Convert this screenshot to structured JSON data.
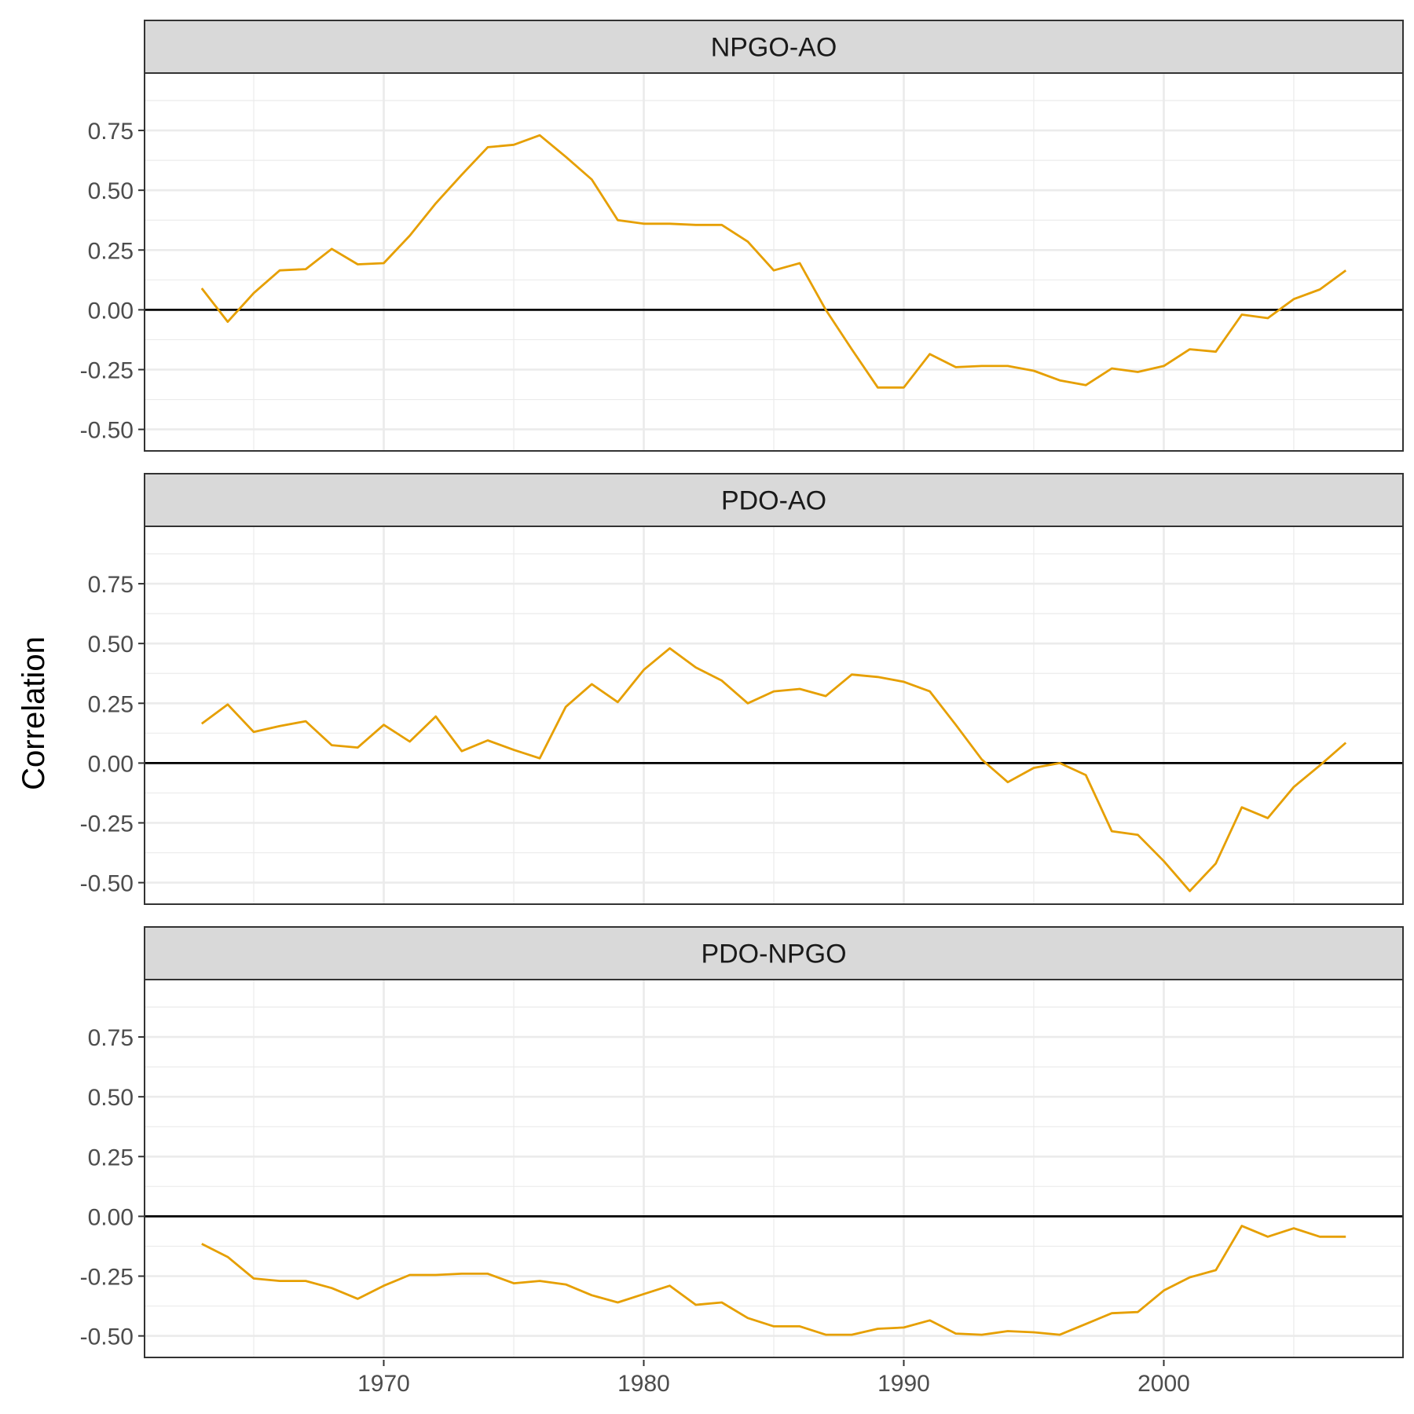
{
  "chart_data": {
    "type": "line",
    "ylabel": "Correlation",
    "xlabel": "",
    "series_color": "#E69F00",
    "zero_line_color": "#000000",
    "strip_fill": "#D9D9D9",
    "grid_color": "#EBEBEB",
    "ylim": [
      -0.59,
      0.99
    ],
    "xlim": [
      1960.8,
      2009.2
    ],
    "x_ticks": [
      1970,
      1980,
      1990,
      2000
    ],
    "x_tick_labels": [
      "1970",
      "1980",
      "1990",
      "2000"
    ],
    "y_ticks": [
      -0.5,
      -0.25,
      0,
      0.25,
      0.5,
      0.75
    ],
    "y_tick_labels": [
      "-0.50",
      "-0.25",
      "0.00",
      "0.25",
      "0.50",
      "0.75"
    ],
    "x": [
      1963,
      1964,
      1965,
      1966,
      1967,
      1968,
      1969,
      1970,
      1971,
      1972,
      1973,
      1974,
      1975,
      1976,
      1977,
      1978,
      1979,
      1980,
      1981,
      1982,
      1983,
      1984,
      1985,
      1986,
      1987,
      1988,
      1989,
      1990,
      1991,
      1992,
      1993,
      1994,
      1995,
      1996,
      1997,
      1998,
      1999,
      2000,
      2001,
      2002,
      2003,
      2004,
      2005,
      2006,
      2007
    ],
    "panels": [
      {
        "name": "NPGO-AO",
        "values": [
          0.09,
          -0.05,
          0.07,
          0.165,
          0.17,
          0.255,
          0.19,
          0.195,
          0.31,
          0.445,
          0.565,
          0.68,
          0.69,
          0.73,
          0.64,
          0.545,
          0.375,
          0.36,
          0.36,
          0.355,
          0.355,
          0.285,
          0.165,
          0.195,
          0.0,
          -0.165,
          -0.325,
          -0.325,
          -0.185,
          -0.24,
          -0.235,
          -0.235,
          -0.255,
          -0.295,
          -0.315,
          -0.245,
          -0.26,
          -0.235,
          -0.165,
          -0.175,
          -0.02,
          -0.035,
          0.045,
          0.085,
          0.165
        ]
      },
      {
        "name": "PDO-AO",
        "values": [
          0.165,
          0.245,
          0.13,
          0.155,
          0.175,
          0.075,
          0.065,
          0.16,
          0.09,
          0.195,
          0.05,
          0.095,
          0.055,
          0.02,
          0.235,
          0.33,
          0.255,
          0.39,
          0.48,
          0.4,
          0.345,
          0.25,
          0.3,
          0.31,
          0.28,
          0.37,
          0.36,
          0.34,
          0.3,
          0.16,
          0.015,
          -0.08,
          -0.02,
          0.0,
          -0.05,
          -0.285,
          -0.3,
          -0.41,
          -0.535,
          -0.42,
          -0.185,
          -0.23,
          -0.1,
          -0.01,
          0.085
        ]
      },
      {
        "name": "PDO-NPGO",
        "values": [
          -0.115,
          -0.17,
          -0.26,
          -0.27,
          -0.27,
          -0.3,
          -0.345,
          -0.29,
          -0.245,
          -0.245,
          -0.24,
          -0.24,
          -0.28,
          -0.27,
          -0.285,
          -0.33,
          -0.36,
          -0.325,
          -0.29,
          -0.37,
          -0.36,
          -0.425,
          -0.46,
          -0.46,
          -0.495,
          -0.495,
          -0.47,
          -0.465,
          -0.435,
          -0.49,
          -0.495,
          -0.48,
          -0.485,
          -0.495,
          -0.45,
          -0.405,
          -0.4,
          -0.31,
          -0.255,
          -0.225,
          -0.04,
          -0.085,
          -0.05,
          -0.085,
          -0.085
        ]
      }
    ]
  }
}
